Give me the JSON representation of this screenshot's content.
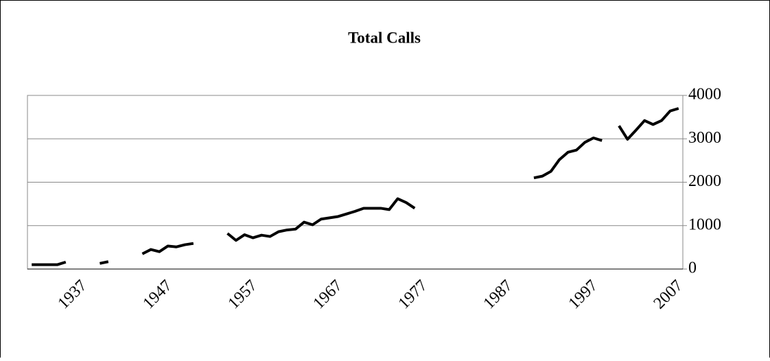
{
  "chart_data": {
    "type": "line",
    "title": "Total Calls",
    "x": [
      1932,
      1933,
      1934,
      1935,
      1936,
      1937,
      1938,
      1939,
      1940,
      1941,
      1942,
      1943,
      1944,
      1945,
      1946,
      1947,
      1948,
      1949,
      1950,
      1951,
      1952,
      1953,
      1954,
      1955,
      1956,
      1957,
      1958,
      1959,
      1960,
      1961,
      1962,
      1963,
      1964,
      1965,
      1966,
      1967,
      1968,
      1969,
      1970,
      1971,
      1972,
      1973,
      1974,
      1975,
      1976,
      1977,
      1978,
      1979,
      1980,
      1981,
      1982,
      1983,
      1984,
      1985,
      1986,
      1987,
      1988,
      1989,
      1990,
      1991,
      1992,
      1993,
      1994,
      1995,
      1996,
      1997,
      1998,
      1999,
      2000,
      2001,
      2002,
      2003,
      2004,
      2005,
      2006,
      2007,
      2008
    ],
    "series": [
      {
        "color": "#000000",
        "values": [
          100,
          100,
          100,
          100,
          160,
          null,
          null,
          null,
          130,
          170,
          null,
          null,
          null,
          350,
          450,
          400,
          530,
          510,
          560,
          590,
          null,
          null,
          null,
          820,
          660,
          790,
          720,
          780,
          750,
          860,
          900,
          920,
          1080,
          1020,
          1150,
          1180,
          1210,
          1270,
          1330,
          1400,
          1400,
          1400,
          1370,
          1620,
          1530,
          1400,
          null,
          null,
          null,
          null,
          null,
          null,
          null,
          null,
          null,
          null,
          null,
          null,
          null,
          2100,
          2140,
          2250,
          2520,
          2690,
          2740,
          2920,
          3020,
          2960,
          null,
          3300,
          2990,
          3200,
          3420,
          3330,
          3420,
          3640,
          3700
        ]
      }
    ],
    "xlim": [
      1931.5,
      2008.5
    ],
    "xticks": [
      1937,
      1947,
      1957,
      1967,
      1977,
      1987,
      1997,
      2007
    ],
    "ylim": [
      0,
      4000
    ],
    "yticks": [
      0,
      1000,
      2000,
      3000,
      4000
    ],
    "grid": true
  }
}
